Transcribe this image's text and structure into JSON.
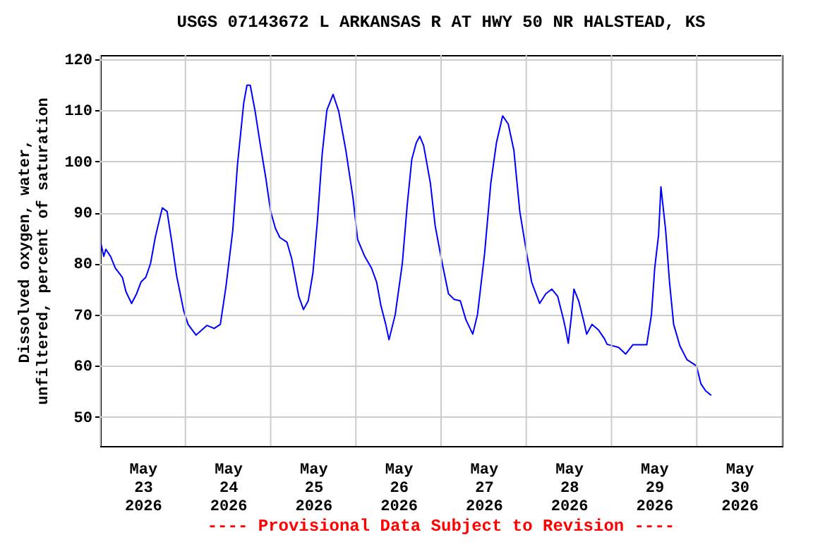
{
  "chart_data": {
    "type": "line",
    "title": "USGS 07143672 L ARKANSAS R AT HWY 50 NR HALSTEAD, KS",
    "ylabel": "Dissolved oxygen, water, unfiltered, percent of saturation",
    "annotations": [
      "---- Provisional Data Subject to Revision ----"
    ],
    "grid": true,
    "xlim": [
      "2026-05-23T00:00",
      "2026-05-31T00:00"
    ],
    "ylim": [
      44.3,
      120.8
    ],
    "yticks": [
      50,
      60,
      70,
      80,
      90,
      100,
      110,
      120
    ],
    "xticks": [
      {
        "value": "2026-05-23T00:00",
        "label": null
      },
      {
        "value": "2026-05-23T12:00",
        "label": "May 23 2026"
      },
      {
        "value": "2026-05-24T00:00",
        "label": null
      },
      {
        "value": "2026-05-24T12:00",
        "label": "May 24 2026"
      },
      {
        "value": "2026-05-25T00:00",
        "label": null
      },
      {
        "value": "2026-05-25T12:00",
        "label": "May 25 2026"
      },
      {
        "value": "2026-05-26T00:00",
        "label": null
      },
      {
        "value": "2026-05-26T12:00",
        "label": "May 26 2026"
      },
      {
        "value": "2026-05-27T00:00",
        "label": null
      },
      {
        "value": "2026-05-27T12:00",
        "label": "May 27 2026"
      },
      {
        "value": "2026-05-28T00:00",
        "label": null
      },
      {
        "value": "2026-05-28T12:00",
        "label": "May 28 2026"
      },
      {
        "value": "2026-05-29T00:00",
        "label": null
      },
      {
        "value": "2026-05-29T12:00",
        "label": "May 29 2026"
      },
      {
        "value": "2026-05-30T00:00",
        "label": null
      },
      {
        "value": "2026-05-30T12:00",
        "label": "May 30 2026"
      },
      {
        "value": "2026-05-31T00:00",
        "label": null
      }
    ],
    "x": [
      "2026-05-23T00:15",
      "2026-05-23T01:00",
      "2026-05-23T01:35",
      "2026-05-23T02:55",
      "2026-05-23T04:15",
      "2026-05-23T06:15",
      "2026-05-23T07:15",
      "2026-05-23T08:50",
      "2026-05-23T10:15",
      "2026-05-23T11:30",
      "2026-05-23T12:50",
      "2026-05-23T14:10",
      "2026-05-23T15:30",
      "2026-05-23T16:35",
      "2026-05-23T17:30",
      "2026-05-23T18:50",
      "2026-05-23T20:10",
      "2026-05-23T21:30",
      "2026-05-23T23:30",
      "2026-05-24T00:45",
      "2026-05-24T03:00",
      "2026-05-24T06:05",
      "2026-05-24T08:05",
      "2026-05-24T09:50",
      "2026-05-24T11:25",
      "2026-05-24T13:20",
      "2026-05-24T14:40",
      "2026-05-24T16:25",
      "2026-05-24T17:20",
      "2026-05-24T18:15",
      "2026-05-24T19:35",
      "2026-05-24T20:55",
      "2026-05-24T22:40",
      "2026-05-25T00:00",
      "2026-05-25T01:20",
      "2026-05-25T02:35",
      "2026-05-25T04:35",
      "2026-05-25T05:55",
      "2026-05-25T07:55",
      "2026-05-25T09:15",
      "2026-05-25T10:35",
      "2026-05-25T11:55",
      "2026-05-25T13:10",
      "2026-05-25T14:30",
      "2026-05-25T15:50",
      "2026-05-25T17:35",
      "2026-05-25T19:10",
      "2026-05-25T21:10",
      "2026-05-25T23:10",
      "2026-05-26T00:30",
      "2026-05-26T02:30",
      "2026-05-26T04:25",
      "2026-05-26T05:50",
      "2026-05-26T07:05",
      "2026-05-26T08:25",
      "2026-05-26T09:20",
      "2026-05-26T11:05",
      "2026-05-26T13:05",
      "2026-05-26T14:25",
      "2026-05-26T15:45",
      "2026-05-26T17:00",
      "2026-05-26T18:00",
      "2026-05-26T19:05",
      "2026-05-26T21:00",
      "2026-05-26T22:20",
      "2026-05-27T00:20",
      "2026-05-27T02:05",
      "2026-05-27T03:40",
      "2026-05-27T05:25",
      "2026-05-27T07:00",
      "2026-05-27T08:55",
      "2026-05-27T10:15",
      "2026-05-27T12:15",
      "2026-05-27T14:00",
      "2026-05-27T15:35",
      "2026-05-27T17:20",
      "2026-05-27T18:55",
      "2026-05-27T20:30",
      "2026-05-27T22:10",
      "2026-05-27T23:55",
      "2026-05-28T01:30",
      "2026-05-28T03:45",
      "2026-05-28T05:30",
      "2026-05-28T07:10",
      "2026-05-28T08:50",
      "2026-05-28T10:30",
      "2026-05-28T11:05",
      "2026-05-28T11:50",
      "2026-05-28T12:45",
      "2026-05-28T13:25",
      "2026-05-28T14:45",
      "2026-05-28T16:05",
      "2026-05-28T17:00",
      "2026-05-28T18:30",
      "2026-05-28T20:20",
      "2026-05-28T22:00",
      "2026-05-28T22:45",
      "2026-05-29T02:00",
      "2026-05-29T04:00",
      "2026-05-29T06:00",
      "2026-05-29T09:55",
      "2026-05-29T11:15",
      "2026-05-29T12:10",
      "2026-05-29T13:15",
      "2026-05-29T13:55",
      "2026-05-29T15:15",
      "2026-05-29T16:20",
      "2026-05-29T17:30",
      "2026-05-29T19:15",
      "2026-05-29T21:15",
      "2026-05-29T23:55",
      "2026-05-30T01:10",
      "2026-05-30T02:30",
      "2026-05-30T04:05"
    ],
    "series": [
      {
        "color": "#0000ff",
        "values": [
          83.8,
          81.4,
          82.8,
          81.4,
          79.1,
          77.3,
          74.5,
          72.2,
          74.1,
          76.4,
          77.3,
          80,
          85.1,
          88.3,
          90.9,
          90.2,
          84.2,
          77.7,
          70.8,
          68.1,
          66,
          67.9,
          67.3,
          68.1,
          75.5,
          86.5,
          99.4,
          111.4,
          114.9,
          114.9,
          110,
          104,
          96.6,
          90.2,
          86.9,
          85.1,
          84.2,
          81,
          73.6,
          71,
          72.7,
          78.2,
          88.3,
          101.3,
          110,
          113.1,
          109.8,
          102.2,
          93,
          84.7,
          81.4,
          79.1,
          76.4,
          71.7,
          68.1,
          65.1,
          70,
          80,
          91.1,
          100.4,
          103.6,
          104.9,
          103.1,
          95.7,
          87.4,
          80,
          74.1,
          73,
          72.7,
          69,
          66.2,
          70,
          81.9,
          95.7,
          103.6,
          108.9,
          107.3,
          102.2,
          90.2,
          82.8,
          76.4,
          72.2,
          74.1,
          75,
          73.6,
          69,
          67.1,
          64.4,
          70,
          75,
          72.7,
          69,
          66.2,
          68.1,
          67,
          65.3,
          64.2,
          63.6,
          62.3,
          64.1,
          64.1,
          70,
          79.1,
          85.6,
          95,
          86.5,
          76.4,
          68.1,
          63.9,
          61.2,
          60,
          56.5,
          55.1,
          54.2
        ]
      }
    ]
  }
}
